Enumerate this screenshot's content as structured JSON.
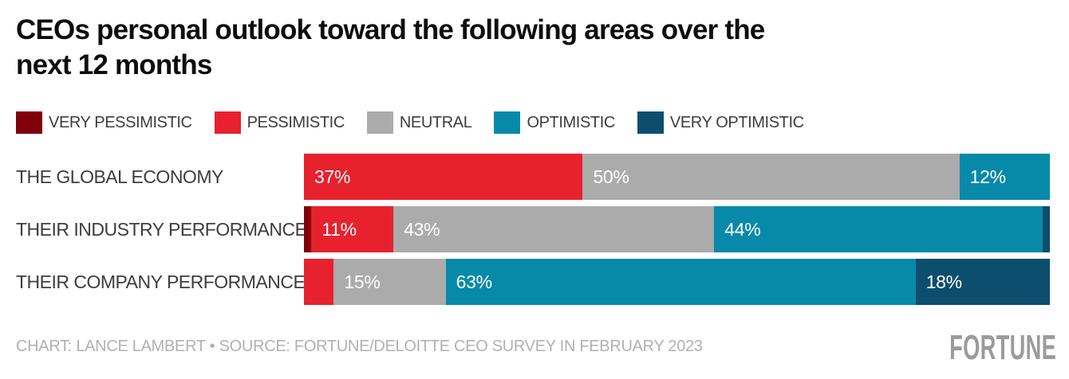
{
  "title": "CEOs personal outlook toward the following areas over the\nnext 12 months",
  "colors": {
    "VERY PESSIMISTIC": "#7f000a",
    "PESSIMISTIC": "#e8212e",
    "NEUTRAL": "#ababab",
    "OPTIMISTIC": "#0789a9",
    "VERY OPTIMISTIC": "#0d4e6e"
  },
  "legend": {
    "items": [
      {
        "label": "VERY PESSIMISTIC"
      },
      {
        "label": "PESSIMISTIC"
      },
      {
        "label": "NEUTRAL"
      },
      {
        "label": "OPTIMISTIC"
      },
      {
        "label": "VERY OPTIMISTIC"
      }
    ]
  },
  "chart_data": {
    "type": "bar",
    "orientation": "horizontal",
    "stacked": true,
    "unit": "%",
    "xlim": [
      0,
      100
    ],
    "grid": false,
    "legend_position": "top",
    "categories": [
      "THE GLOBAL ECONOMY",
      "THEIR INDUSTRY PERFORMANCE",
      "THEIR COMPANY PERFORMANCE"
    ],
    "series": [
      {
        "name": "VERY PESSIMISTIC",
        "values": [
          0,
          1,
          0
        ]
      },
      {
        "name": "PESSIMISTIC",
        "values": [
          37,
          11,
          4
        ]
      },
      {
        "name": "NEUTRAL",
        "values": [
          50,
          43,
          15
        ]
      },
      {
        "name": "OPTIMISTIC",
        "values": [
          12,
          44,
          63
        ]
      },
      {
        "name": "VERY OPTIMISTIC",
        "values": [
          0,
          1,
          18
        ]
      }
    ],
    "rows": [
      {
        "category": "THE GLOBAL ECONOMY",
        "segments": [
          {
            "series": "PESSIMISTIC",
            "value": 37,
            "label": "37%"
          },
          {
            "series": "NEUTRAL",
            "value": 50,
            "label": "50%"
          },
          {
            "series": "OPTIMISTIC",
            "value": 12,
            "label": "12%"
          }
        ]
      },
      {
        "category": "THEIR INDUSTRY PERFORMANCE",
        "segments": [
          {
            "series": "VERY PESSIMISTIC",
            "value": 1,
            "label": ""
          },
          {
            "series": "PESSIMISTIC",
            "value": 11,
            "label": "11%"
          },
          {
            "series": "NEUTRAL",
            "value": 43,
            "label": "43%"
          },
          {
            "series": "OPTIMISTIC",
            "value": 44,
            "label": "44%"
          },
          {
            "series": "VERY OPTIMISTIC",
            "value": 1,
            "label": ""
          }
        ]
      },
      {
        "category": "THEIR COMPANY PERFORMANCE",
        "segments": [
          {
            "series": "PESSIMISTIC",
            "value": 4,
            "label": ""
          },
          {
            "series": "NEUTRAL",
            "value": 15,
            "label": "15%"
          },
          {
            "series": "OPTIMISTIC",
            "value": 63,
            "label": "63%"
          },
          {
            "series": "VERY OPTIMISTIC",
            "value": 18,
            "label": "18%"
          }
        ]
      }
    ]
  },
  "footer": {
    "credit": "CHART: LANCE LAMBERT • SOURCE: FORTUNE/DELOITTE CEO SURVEY IN FEBRUARY 2023",
    "brand": "FORTUNE"
  }
}
